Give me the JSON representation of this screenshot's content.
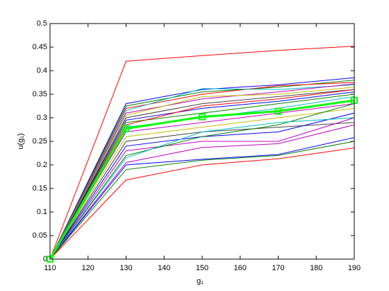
{
  "chart_data": {
    "type": "line",
    "x_label": "g₁",
    "y_label": "u(g₁)",
    "x": [
      110,
      130,
      150,
      170,
      190
    ],
    "xlim": [
      110,
      190
    ],
    "xticks": [
      110,
      120,
      130,
      140,
      150,
      160,
      170,
      180,
      190
    ],
    "ylim": [
      0,
      0.5
    ],
    "yticks": [
      0,
      0.05,
      0.1,
      0.15,
      0.2,
      0.25,
      0.3,
      0.35,
      0.4,
      0.45,
      0.5
    ],
    "series": [
      {
        "color": "#ff0000",
        "values": [
          0,
          0.42,
          0.432,
          0.443,
          0.452
        ]
      },
      {
        "color": "#0000ff",
        "values": [
          0,
          0.33,
          0.36,
          0.37,
          0.385
        ]
      },
      {
        "color": "#008000",
        "values": [
          0,
          0.325,
          0.355,
          0.365,
          0.38
        ]
      },
      {
        "color": "#ff0000",
        "values": [
          0,
          0.32,
          0.35,
          0.368,
          0.375
        ]
      },
      {
        "color": "#00bfbf",
        "values": [
          0,
          0.315,
          0.362,
          0.36,
          0.37
        ]
      },
      {
        "color": "#bf00bf",
        "values": [
          0,
          0.31,
          0.34,
          0.355,
          0.372
        ]
      },
      {
        "color": "#bfbf00",
        "values": [
          0,
          0.305,
          0.345,
          0.35,
          0.365
        ]
      },
      {
        "color": "#404040",
        "values": [
          0,
          0.3,
          0.33,
          0.345,
          0.36
        ]
      },
      {
        "color": "#0000ff",
        "values": [
          0,
          0.295,
          0.32,
          0.335,
          0.355
        ]
      },
      {
        "color": "#008000",
        "values": [
          0,
          0.29,
          0.31,
          0.33,
          0.35
        ]
      },
      {
        "color": "#ff0000",
        "values": [
          0,
          0.285,
          0.325,
          0.34,
          0.36
        ]
      },
      {
        "color": "#00bfbf",
        "values": [
          0,
          0.28,
          0.3,
          0.32,
          0.345
        ]
      },
      {
        "color": "#bf00bf",
        "values": [
          0,
          0.27,
          0.29,
          0.31,
          0.33
        ]
      },
      {
        "color": "#bfbf00",
        "values": [
          0,
          0.26,
          0.28,
          0.3,
          0.32
        ]
      },
      {
        "color": "#404040",
        "values": [
          0,
          0.25,
          0.27,
          0.28,
          0.29
        ]
      },
      {
        "color": "#0000ff",
        "values": [
          0,
          0.24,
          0.26,
          0.27,
          0.31
        ]
      },
      {
        "color": "#bf00bf",
        "values": [
          0,
          0.23,
          0.25,
          0.25,
          0.3
        ]
      },
      {
        "color": "#008000",
        "values": [
          0,
          0.22,
          0.26,
          0.285,
          0.33
        ]
      },
      {
        "color": "#00bfbf",
        "values": [
          0,
          0.215,
          0.27,
          0.29,
          0.3
        ]
      },
      {
        "color": "#bf00bf",
        "values": [
          0,
          0.205,
          0.237,
          0.245,
          0.285
        ]
      },
      {
        "color": "#0000ff",
        "values": [
          0,
          0.2,
          0.212,
          0.222,
          0.258
        ]
      },
      {
        "color": "#008000",
        "values": [
          0,
          0.19,
          0.21,
          0.22,
          0.25
        ]
      },
      {
        "color": "#ff0000",
        "values": [
          0,
          0.168,
          0.2,
          0.213,
          0.236
        ]
      },
      {
        "color": "#00ff00",
        "values": [
          0,
          0.277,
          0.302,
          0.314,
          0.337
        ],
        "line_width": 3,
        "marker": "square"
      }
    ]
  }
}
